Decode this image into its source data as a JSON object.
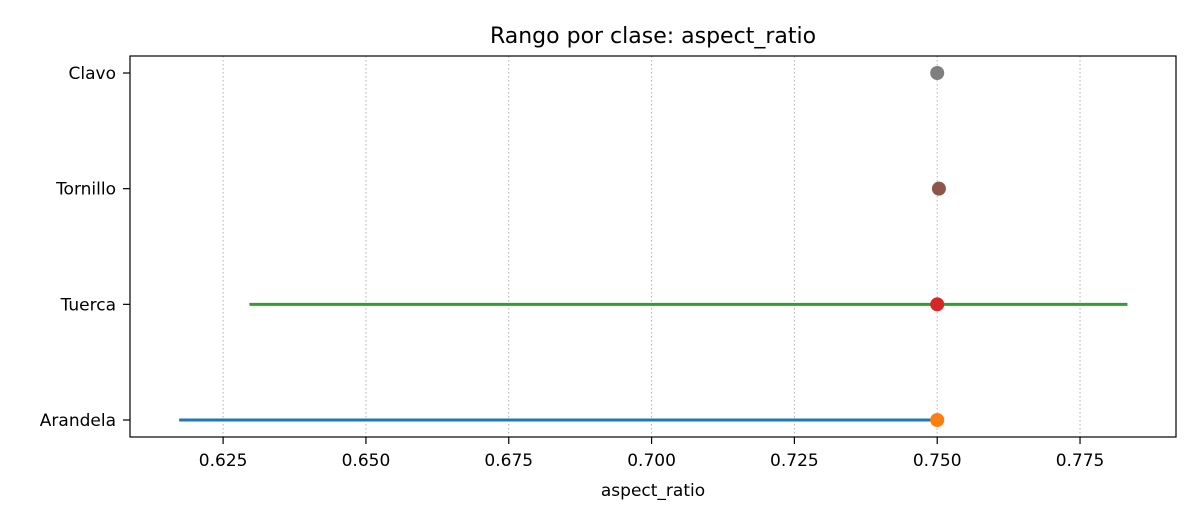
{
  "chart_data": {
    "type": "range-dot",
    "title": "Rango por clase: aspect_ratio",
    "xlabel": "aspect_ratio",
    "ylabel": "",
    "xlim": [
      0.6087,
      0.7918
    ],
    "xticks": [
      0.625,
      0.65,
      0.675,
      0.7,
      0.725,
      0.75,
      0.775
    ],
    "xtick_labels": [
      "0.625",
      "0.650",
      "0.675",
      "0.700",
      "0.725",
      "0.750",
      "0.775"
    ],
    "grid": "x-dotted",
    "categories": [
      "Arandela",
      "Tuerca",
      "Tornillo",
      "Clavo"
    ],
    "series": [
      {
        "category": "Arandela",
        "min": 0.6173,
        "max": 0.75,
        "point": 0.75,
        "line_color": "#1f77b4",
        "point_color": "#ff7f0e"
      },
      {
        "category": "Tuerca",
        "min": 0.6296,
        "max": 0.7833,
        "point": 0.75,
        "line_color": "#2ca02c",
        "point_color": "#d62728"
      },
      {
        "category": "Tornillo",
        "min": 0.7503,
        "max": 0.7503,
        "point": 0.7503,
        "line_color": "#9467bd",
        "point_color": "#8c564b"
      },
      {
        "category": "Clavo",
        "min": 0.75,
        "max": 0.75,
        "point": 0.75,
        "line_color": "#e377c2",
        "point_color": "#7f7f7f"
      }
    ]
  }
}
